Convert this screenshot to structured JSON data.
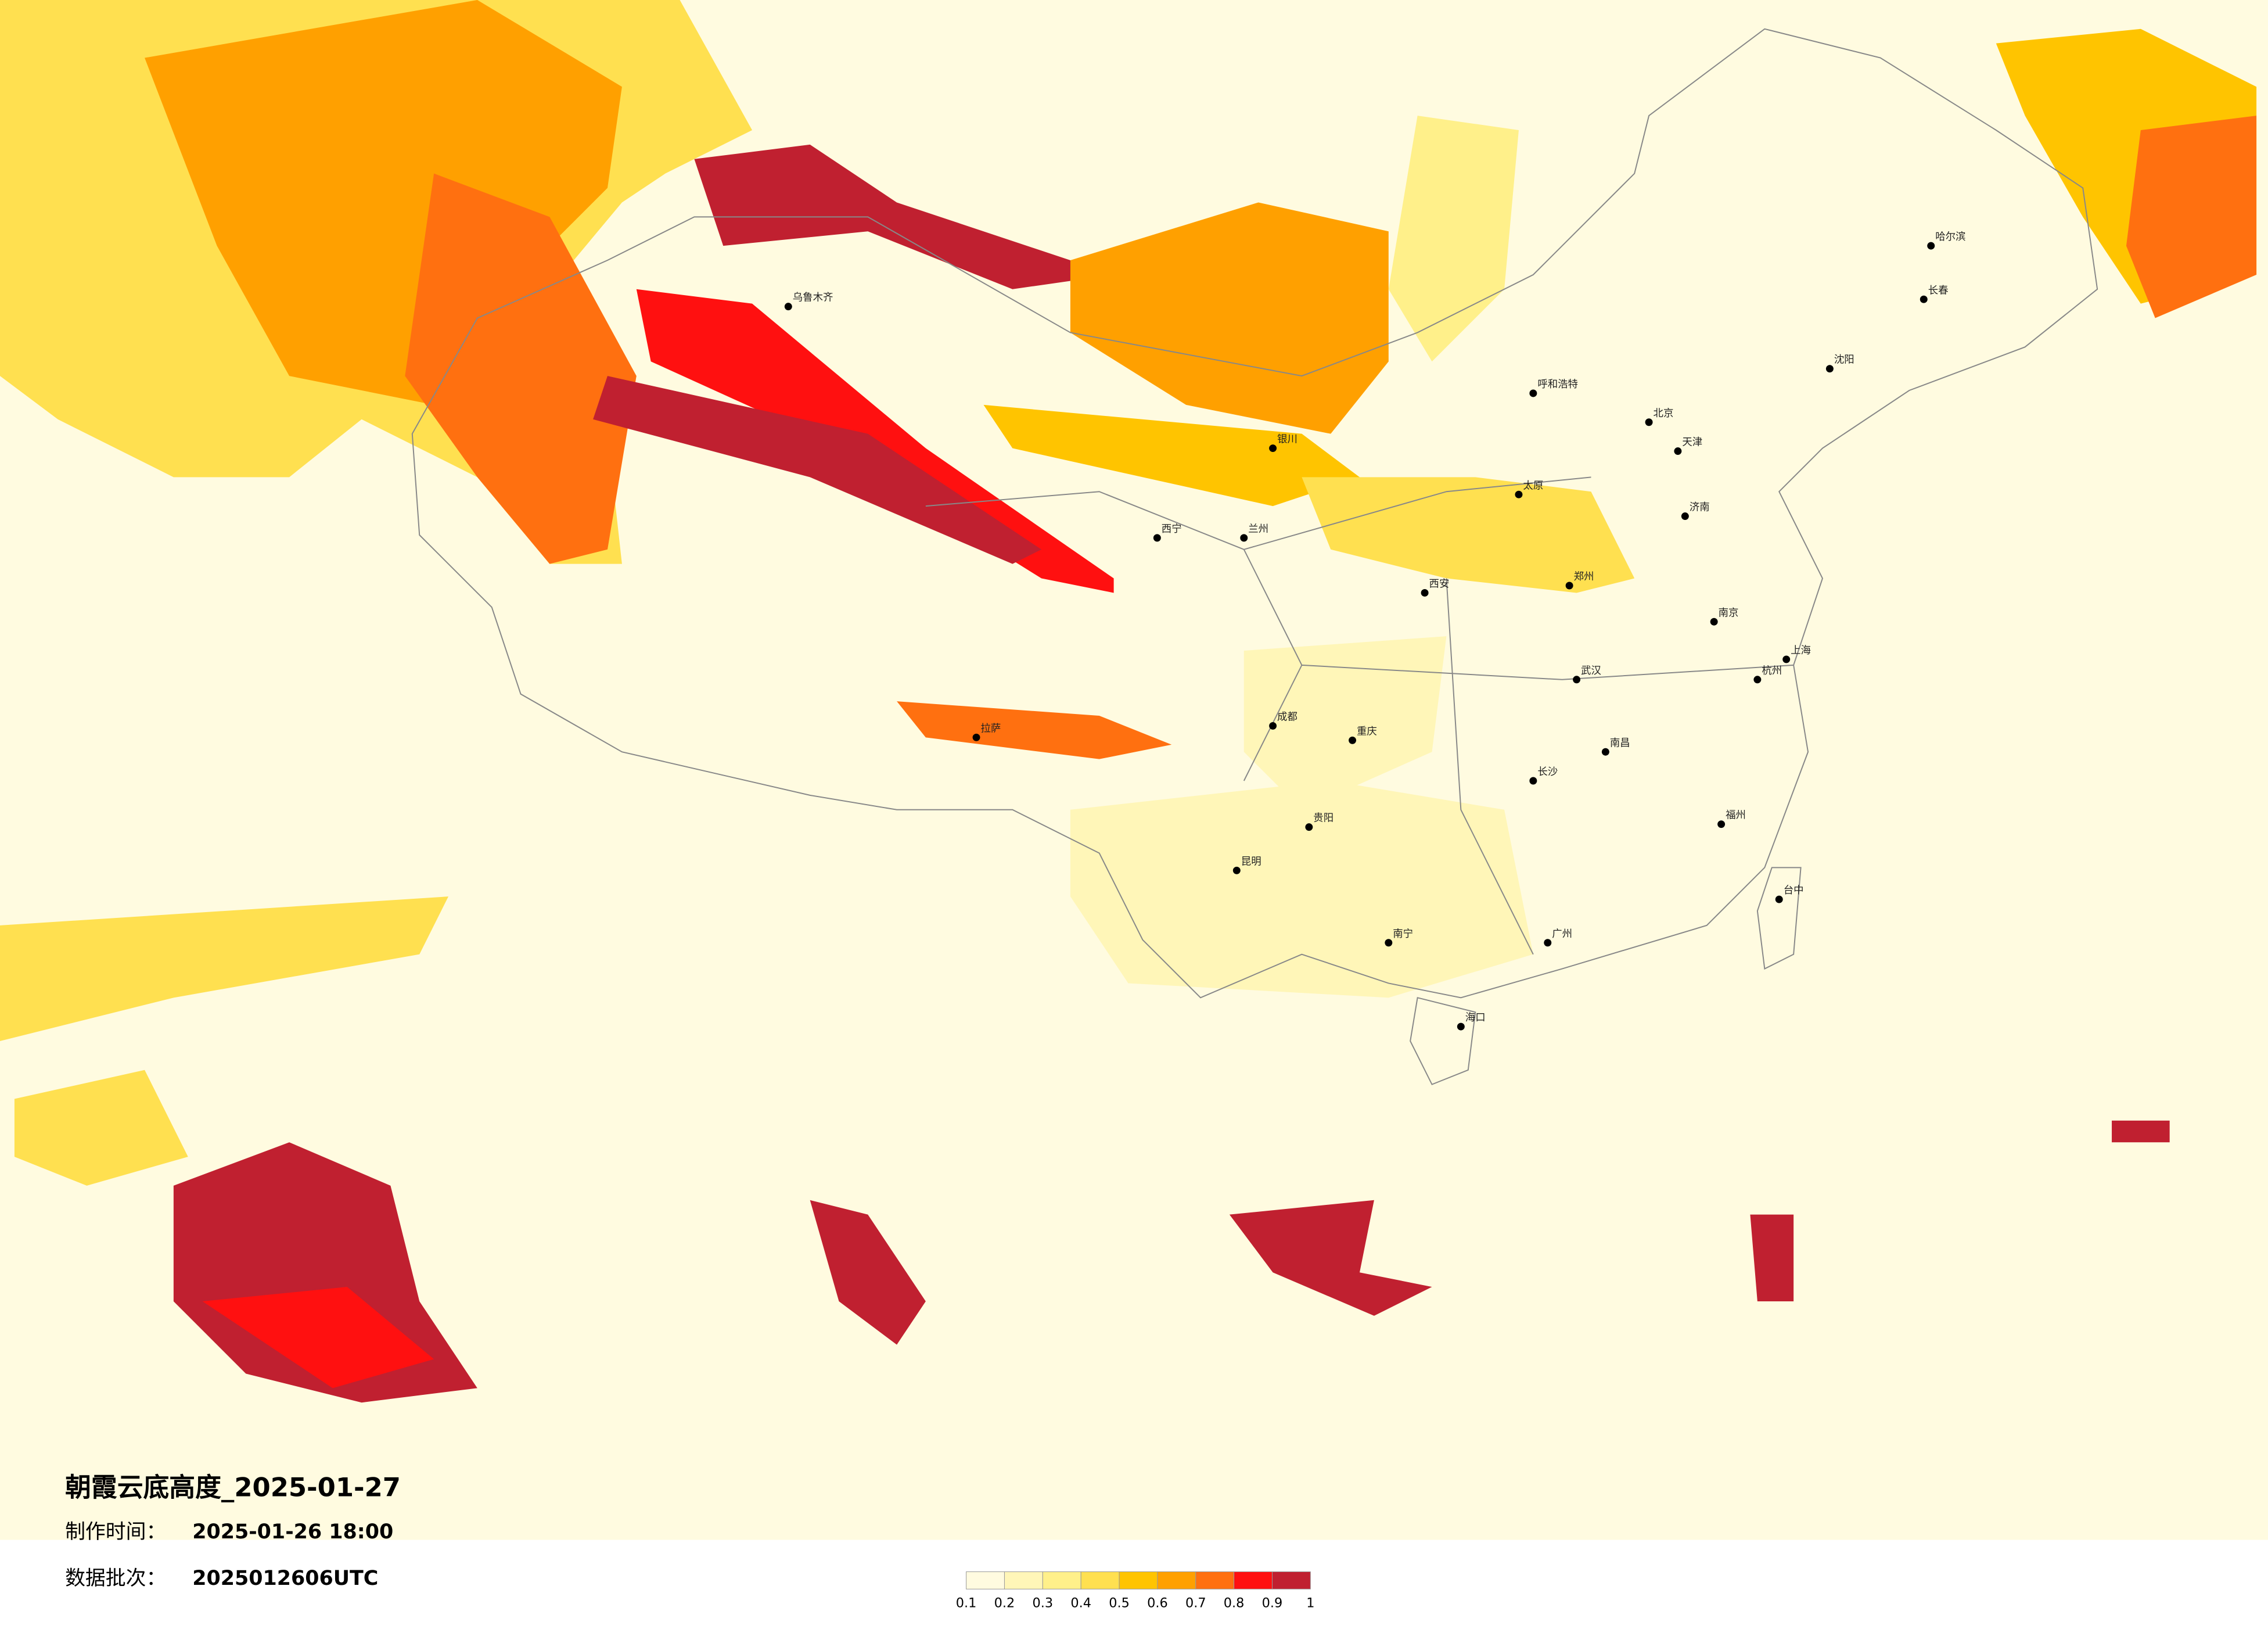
{
  "title": "朝霞云底高度_2025-01-27",
  "production_time": {
    "label": "制作时间：",
    "value": "2025-01-26 18:00"
  },
  "batch": {
    "label": "数据批次：",
    "value": "2025012606UTC"
  },
  "legend": {
    "ticks": [
      0.1,
      0.2,
      0.3,
      0.4,
      0.5,
      0.6,
      0.7,
      0.8,
      0.9,
      1
    ],
    "colors": [
      "#fffbe0",
      "#fff6b8",
      "#fff08a",
      "#ffe050",
      "#ffc400",
      "#ffa000",
      "#ff7010",
      "#ff1010",
      "#c02030"
    ]
  },
  "cities": [
    "北京",
    "天津",
    "上海",
    "广州",
    "重庆",
    "成都",
    "武汉",
    "西安",
    "乌鲁木齐",
    "哈尔滨",
    "长春",
    "沈阳",
    "拉萨",
    "昆明",
    "南宁",
    "海口",
    "台中",
    "呼和浩特",
    "济南",
    "郑州",
    "长沙",
    "南昌",
    "福州",
    "杭州",
    "南京",
    "贵阳",
    "兰州",
    "西宁",
    "银川",
    "太原"
  ]
}
